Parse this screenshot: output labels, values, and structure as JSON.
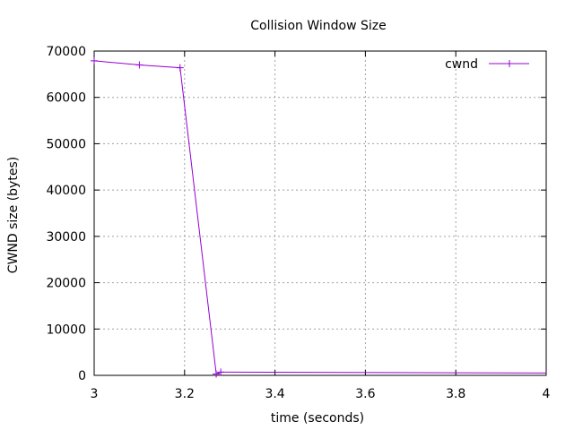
{
  "chart_data": {
    "type": "line",
    "title": "Collision Window Size",
    "xlabel": "time (seconds)",
    "ylabel": "CWND size (bytes)",
    "xlim": [
      3,
      4
    ],
    "ylim": [
      0,
      70000
    ],
    "x_ticks": [
      3,
      3.2,
      3.4,
      3.6,
      3.8,
      4
    ],
    "x_tick_labels": [
      "3",
      "3.2",
      "3.4",
      "3.6",
      "3.8",
      "4"
    ],
    "y_ticks": [
      0,
      10000,
      20000,
      30000,
      40000,
      50000,
      60000,
      70000
    ],
    "y_tick_labels": [
      "0",
      "10000",
      "20000",
      "30000",
      "40000",
      "50000",
      "60000",
      "70000"
    ],
    "grid": true,
    "legend_position": "top-right",
    "series": [
      {
        "name": "cwnd",
        "color": "#9400d3",
        "marker": "plus",
        "x": [
          3.0,
          3.1,
          3.19,
          3.27,
          3.28,
          3.64,
          4.0
        ],
        "y": [
          67900,
          67000,
          66400,
          300,
          700,
          600,
          500
        ],
        "markers_x": [
          3.0,
          3.1,
          3.19,
          3.27,
          3.28
        ],
        "markers_y": [
          67900,
          67000,
          66400,
          300,
          700
        ]
      }
    ]
  }
}
